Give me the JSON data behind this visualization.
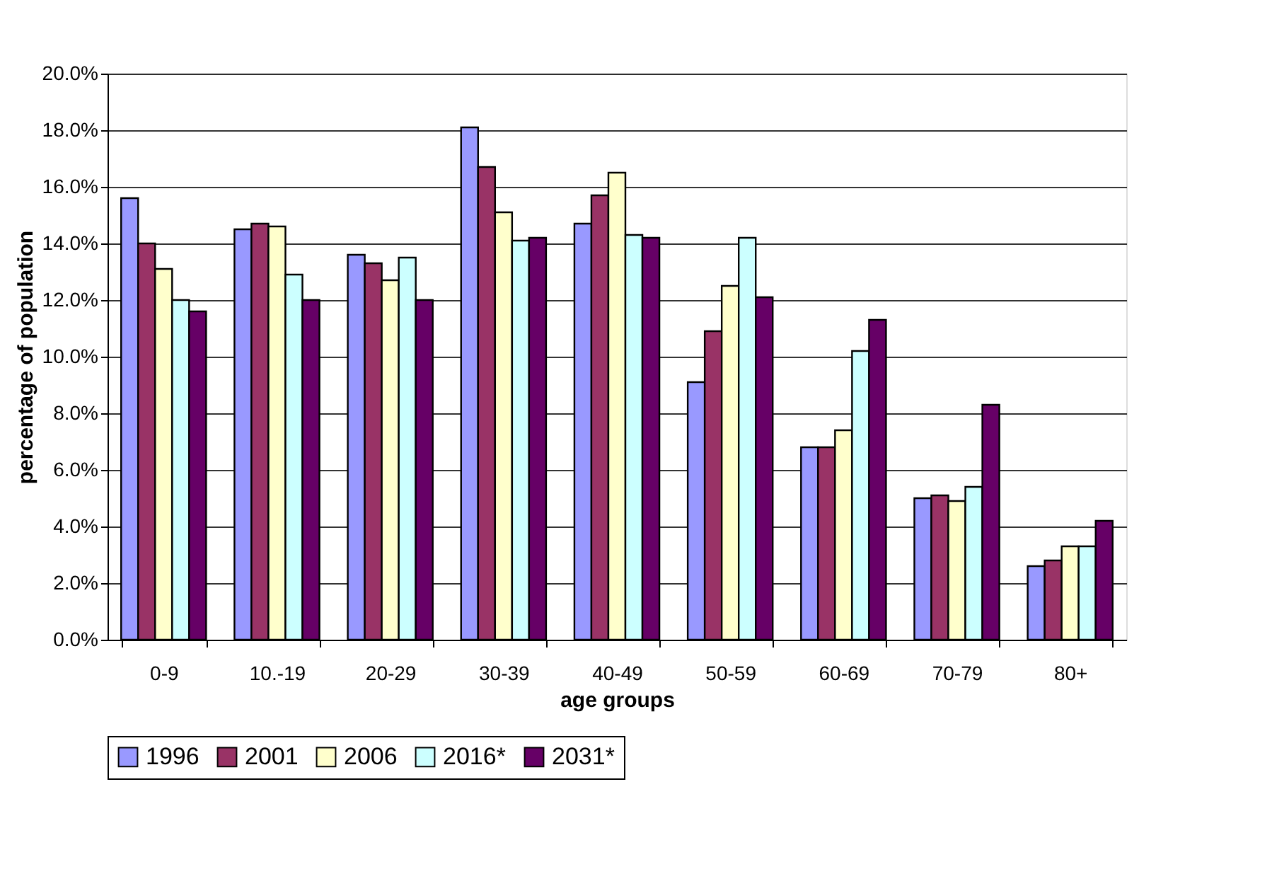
{
  "chart_data": {
    "type": "bar",
    "xlabel": "age groups",
    "ylabel": "percentage of population",
    "categories": [
      "0-9",
      "10.-19",
      "20-29",
      "30-39",
      "40-49",
      "50-59",
      "60-69",
      "70-79",
      "80+"
    ],
    "series": [
      {
        "name": "1996",
        "color": "#9999ff",
        "values": [
          15.6,
          14.5,
          13.6,
          18.1,
          14.7,
          9.1,
          6.8,
          5.0,
          2.6
        ]
      },
      {
        "name": "2001",
        "color": "#993366",
        "values": [
          14.0,
          14.7,
          13.3,
          16.7,
          15.7,
          10.9,
          6.8,
          5.1,
          2.8
        ]
      },
      {
        "name": "2006",
        "color": "#ffffcc",
        "values": [
          13.1,
          14.6,
          12.7,
          15.1,
          16.5,
          12.5,
          7.4,
          4.9,
          3.3
        ]
      },
      {
        "name": "2016*",
        "color": "#ccffff",
        "values": [
          12.0,
          12.9,
          13.5,
          14.1,
          14.3,
          14.2,
          10.2,
          5.4,
          3.3
        ]
      },
      {
        "name": "2031*",
        "color": "#660066",
        "values": [
          11.6,
          12.0,
          12.0,
          14.2,
          14.2,
          12.1,
          11.3,
          8.3,
          4.2
        ]
      }
    ],
    "ylim": [
      0,
      20
    ],
    "yticks": [
      {
        "value": 0,
        "label": "0.0%"
      },
      {
        "value": 2,
        "label": "2.0%"
      },
      {
        "value": 4,
        "label": "4.0%"
      },
      {
        "value": 6,
        "label": "6.0%"
      },
      {
        "value": 8,
        "label": "8.0%"
      },
      {
        "value": 10,
        "label": "10.0%"
      },
      {
        "value": 12,
        "label": "12.0%"
      },
      {
        "value": 14,
        "label": "14.0%"
      },
      {
        "value": 16,
        "label": "16.0%"
      },
      {
        "value": 18,
        "label": "18.0%"
      },
      {
        "value": 20,
        "label": "20.0%"
      }
    ],
    "grid": "y",
    "legend": "bottom"
  }
}
